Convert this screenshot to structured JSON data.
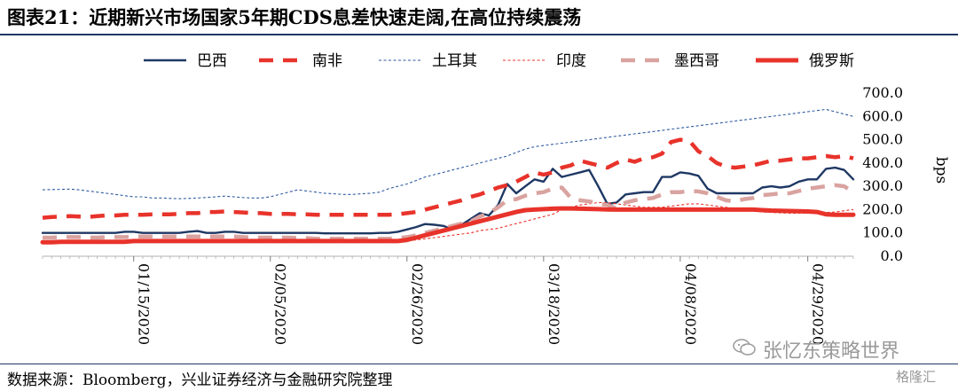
{
  "header": {
    "title": "图表21：近期新兴市场国家5年期CDS息差快速走阔,在高位持续震荡"
  },
  "footer": {
    "source": "数据来源：Bloomberg，兴业证券经济与金融研究院整理"
  },
  "watermark": {
    "text": "张忆东策略世界",
    "brand": "格隆汇"
  },
  "chart_data": {
    "type": "line",
    "ylabel": "bps",
    "ylim": [
      0,
      700
    ],
    "yticks": [
      "0.0",
      "100.0",
      "200.0",
      "300.0",
      "400.0",
      "500.0",
      "600.0",
      "700.0"
    ],
    "x_tick_labels": [
      "01/15/2020",
      "02/05/2020",
      "02/26/2020",
      "03/18/2020",
      "04/08/2020",
      "04/29/2020"
    ],
    "x_tick_index": [
      10,
      25,
      40,
      55,
      70,
      84
    ],
    "legend_position": "top",
    "series": [
      {
        "name": "巴西",
        "color": "#1f3864",
        "style": "solid-thin",
        "values": [
          100,
          100,
          100,
          100,
          100,
          100,
          100,
          100,
          100,
          105,
          105,
          100,
          100,
          100,
          100,
          100,
          105,
          108,
          100,
          100,
          105,
          105,
          100,
          100,
          100,
          100,
          100,
          100,
          100,
          100,
          100,
          98,
          98,
          98,
          98,
          98,
          98,
          100,
          100,
          105,
          115,
          125,
          138,
          135,
          130,
          115,
          135,
          160,
          185,
          175,
          220,
          310,
          270,
          300,
          330,
          320,
          375,
          340,
          350,
          360,
          370,
          300,
          225,
          230,
          265,
          270,
          275,
          275,
          340,
          340,
          360,
          355,
          345,
          290,
          270,
          270,
          270,
          270,
          270,
          295,
          300,
          295,
          300,
          320,
          330,
          330,
          375,
          380,
          370,
          330
        ]
      },
      {
        "name": "南非",
        "color": "#e8332b",
        "style": "dash-thick",
        "values": [
          165,
          168,
          170,
          172,
          170,
          168,
          172,
          175,
          175,
          178,
          178,
          178,
          180,
          180,
          180,
          182,
          185,
          185,
          190,
          190,
          192,
          190,
          188,
          185,
          185,
          182,
          182,
          182,
          180,
          180,
          178,
          178,
          178,
          178,
          178,
          178,
          178,
          178,
          178,
          180,
          185,
          190,
          200,
          210,
          220,
          230,
          240,
          255,
          265,
          280,
          295,
          305,
          320,
          340,
          360,
          350,
          360,
          380,
          390,
          410,
          400,
          390,
          380,
          400,
          415,
          405,
          420,
          425,
          440,
          490,
          500,
          495,
          450,
          430,
          400,
          385,
          380,
          385,
          390,
          400,
          410,
          410,
          415,
          420,
          420,
          425,
          430,
          425,
          430,
          420
        ]
      },
      {
        "name": "土耳其",
        "color": "#2e5aa0",
        "style": "dot-thin",
        "values": [
          285,
          286,
          287,
          288,
          285,
          280,
          275,
          270,
          265,
          260,
          255,
          255,
          250,
          250,
          248,
          247,
          248,
          250,
          252,
          255,
          258,
          255,
          252,
          250,
          250,
          255,
          265,
          275,
          285,
          280,
          275,
          270,
          268,
          265,
          265,
          268,
          270,
          275,
          290,
          300,
          310,
          325,
          340,
          350,
          360,
          370,
          380,
          390,
          400,
          410,
          420,
          430,
          445,
          460,
          470,
          475,
          480,
          485,
          490,
          495,
          500,
          505,
          510,
          515,
          520,
          525,
          530,
          535,
          540,
          545,
          550,
          555,
          560,
          565,
          570,
          575,
          580,
          585,
          590,
          595,
          600,
          605,
          610,
          615,
          620,
          625,
          630,
          620,
          610,
          600
        ]
      },
      {
        "name": "印度",
        "color": "#e8332b",
        "style": "dot-thin",
        "values": [
          65,
          65,
          65,
          65,
          65,
          65,
          65,
          65,
          65,
          65,
          65,
          65,
          65,
          65,
          65,
          65,
          65,
          65,
          65,
          65,
          65,
          65,
          65,
          65,
          65,
          65,
          65,
          65,
          65,
          65,
          65,
          62,
          62,
          62,
          62,
          62,
          62,
          62,
          62,
          62,
          65,
          70,
          75,
          80,
          85,
          90,
          95,
          100,
          110,
          115,
          120,
          130,
          140,
          150,
          160,
          170,
          180,
          200,
          210,
          220,
          225,
          230,
          230,
          225,
          220,
          215,
          210,
          210,
          210,
          215,
          220,
          225,
          225,
          220,
          215,
          210,
          205,
          200,
          195,
          190,
          188,
          186,
          185,
          185,
          185,
          186,
          188,
          190,
          195,
          200
        ]
      },
      {
        "name": "墨西哥",
        "color": "#d9a3a0",
        "style": "dash-thick",
        "values": [
          80,
          80,
          82,
          82,
          82,
          80,
          80,
          82,
          82,
          82,
          85,
          85,
          85,
          85,
          85,
          85,
          85,
          85,
          85,
          85,
          85,
          85,
          82,
          80,
          80,
          80,
          80,
          80,
          78,
          78,
          75,
          75,
          75,
          75,
          75,
          75,
          75,
          75,
          75,
          78,
          82,
          90,
          100,
          110,
          120,
          130,
          140,
          150,
          170,
          185,
          210,
          240,
          245,
          260,
          270,
          275,
          290,
          295,
          250,
          240,
          235,
          225,
          220,
          205,
          230,
          240,
          245,
          250,
          265,
          275,
          275,
          280,
          278,
          270,
          255,
          240,
          235,
          245,
          250,
          262,
          265,
          270,
          270,
          280,
          290,
          295,
          300,
          305,
          300,
          275
        ]
      },
      {
        "name": "俄罗斯",
        "color": "#e8332b",
        "style": "solid-thick",
        "values": [
          60,
          60,
          62,
          62,
          62,
          62,
          62,
          62,
          62,
          62,
          65,
          65,
          65,
          65,
          65,
          65,
          65,
          65,
          65,
          65,
          65,
          65,
          65,
          65,
          65,
          65,
          65,
          65,
          65,
          65,
          65,
          65,
          65,
          65,
          65,
          65,
          65,
          65,
          65,
          65,
          70,
          80,
          90,
          100,
          110,
          120,
          130,
          140,
          150,
          160,
          170,
          180,
          190,
          198,
          200,
          202,
          204,
          205,
          205,
          204,
          203,
          202,
          201,
          200,
          200,
          200,
          200,
          200,
          200,
          200,
          200,
          200,
          200,
          200,
          200,
          200,
          200,
          200,
          200,
          198,
          196,
          195,
          194,
          193,
          192,
          190,
          180,
          178,
          178,
          178
        ]
      }
    ]
  }
}
